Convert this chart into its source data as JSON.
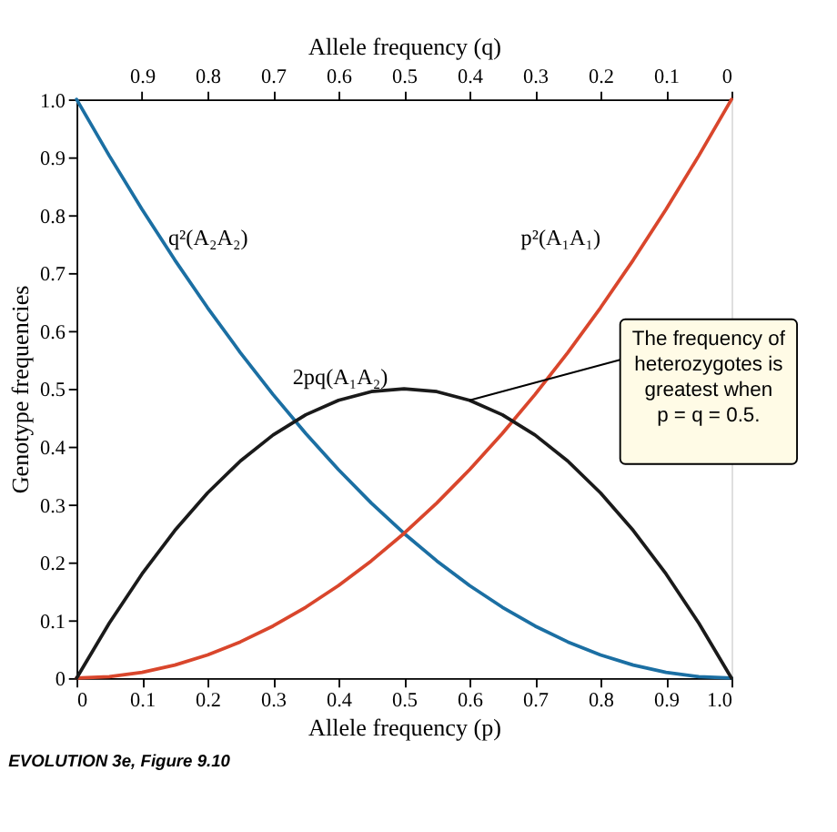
{
  "chart_data": {
    "type": "line",
    "xlabel": "Allele frequency (p)",
    "x2label": "Allele frequency (q)",
    "ylabel": "Genotype frequencies",
    "x": [
      0,
      0.05,
      0.1,
      0.15,
      0.2,
      0.25,
      0.3,
      0.35,
      0.4,
      0.45,
      0.5,
      0.55,
      0.6,
      0.65,
      0.7,
      0.75,
      0.8,
      0.85,
      0.9,
      0.95,
      1.0
    ],
    "series": [
      {
        "name": "q²(A₂A₂)",
        "color": "#1b6fa3",
        "values": [
          1,
          0.9025,
          0.81,
          0.7225,
          0.64,
          0.5625,
          0.49,
          0.4225,
          0.36,
          0.3025,
          0.25,
          0.2025,
          0.16,
          0.1225,
          0.09,
          0.0625,
          0.04,
          0.0225,
          0.01,
          0.0025,
          0
        ]
      },
      {
        "name": "p²(A₁A₁)",
        "color": "#d9462c",
        "values": [
          0,
          0.0025,
          0.01,
          0.0225,
          0.04,
          0.0625,
          0.09,
          0.1225,
          0.16,
          0.2025,
          0.25,
          0.3025,
          0.36,
          0.4225,
          0.49,
          0.5625,
          0.64,
          0.7225,
          0.81,
          0.9025,
          1
        ]
      },
      {
        "name": "2pq(A₁A₂)",
        "color": "#1a1a1a",
        "values": [
          0,
          0.095,
          0.18,
          0.255,
          0.32,
          0.375,
          0.42,
          0.455,
          0.48,
          0.495,
          0.5,
          0.495,
          0.48,
          0.455,
          0.42,
          0.375,
          0.32,
          0.255,
          0.18,
          0.095,
          0
        ]
      }
    ],
    "xlim": [
      0,
      1
    ],
    "xticks": [
      0,
      0.1,
      0.2,
      0.3,
      0.4,
      0.5,
      0.6,
      0.7,
      0.8,
      0.9,
      {
        "value": 1,
        "label": "1.0"
      }
    ],
    "x2lim": [
      1,
      0
    ],
    "x2ticks": [
      0.9,
      0.8,
      0.7,
      0.6,
      0.5,
      0.4,
      0.3,
      0.2,
      0.1,
      0
    ],
    "ylim": [
      0,
      1
    ],
    "yticks": [
      0,
      0.1,
      0.2,
      0.3,
      0.4,
      0.5,
      0.6,
      0.7,
      0.8,
      0.9,
      {
        "value": 1,
        "label": "1.0"
      }
    ],
    "grid": false,
    "legend": false,
    "line_style": "solid",
    "annotations": [
      {
        "text": "The frequency of heterozygotes is greatest when p = q = 0.5.",
        "x": 0.6,
        "y": 0.48
      },
      "EVOLUTION 3e, Figure 9.10"
    ]
  }
}
